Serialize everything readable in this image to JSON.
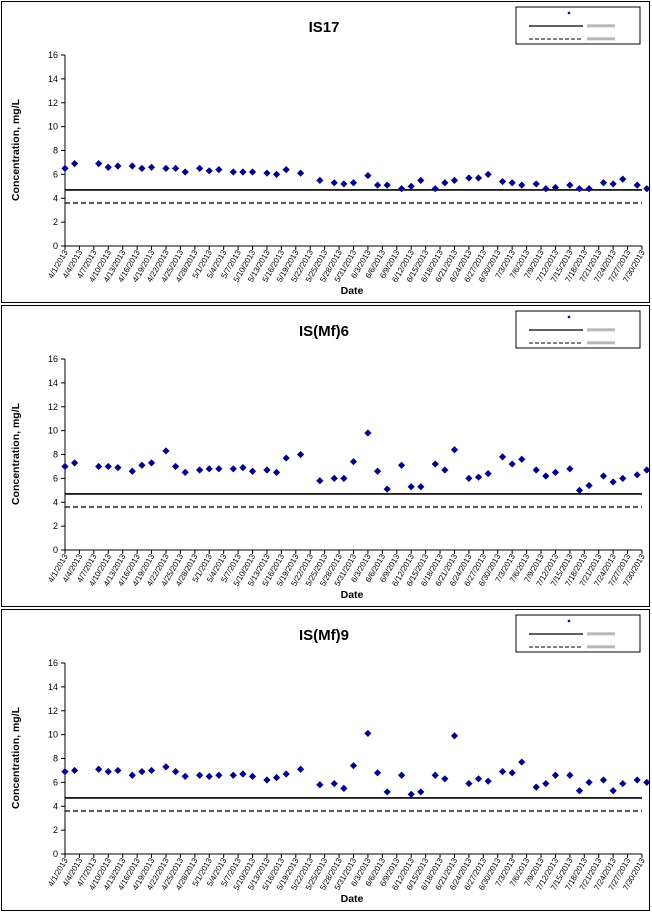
{
  "chart_data": [
    {
      "type": "scatter",
      "title": "IS17",
      "xlabel": "Date",
      "ylabel": "Concentration, mg/L",
      "ylim": [
        0,
        16
      ],
      "yticks": [
        "0",
        "2",
        "4",
        "6",
        "8",
        "10",
        "12",
        "14",
        "16"
      ],
      "xticks": [
        "4/1/2013",
        "4/4/2013",
        "4/7/2013",
        "4/10/2013",
        "4/13/2013",
        "4/16/2013",
        "4/19/2013",
        "4/22/2013",
        "4/25/2013",
        "4/28/2013",
        "5/1/2013",
        "5/4/2013",
        "5/7/2013",
        "5/10/2013",
        "5/13/2013",
        "5/16/2013",
        "5/19/2013",
        "5/22/2013",
        "5/25/2013",
        "5/28/2013",
        "5/31/2013",
        "6/3/2013",
        "6/6/2013",
        "6/9/2013",
        "6/12/2013",
        "6/15/2013",
        "6/18/2013",
        "6/21/2013",
        "6/24/2013",
        "6/27/2013",
        "6/30/2013",
        "7/3/2013",
        "7/6/2013",
        "7/9/2013",
        "7/12/2013",
        "7/15/2013",
        "7/18/2013",
        "7/21/2013",
        "7/24/2013",
        "7/27/2013",
        "7/30/2013"
      ],
      "grid": false,
      "legend_position": "top-right",
      "reference_lines": [
        {
          "value": 4.7,
          "style": "solid"
        },
        {
          "value": 3.6,
          "style": "dashed"
        }
      ],
      "series": [
        {
          "marker_color": "#00008B",
          "x": [
            "4/1/2013",
            "4/3/2013",
            "4/8/2013",
            "4/10/2013",
            "4/12/2013",
            "4/15/2013",
            "4/17/2013",
            "4/19/2013",
            "4/22/2013",
            "4/24/2013",
            "4/26/2013",
            "4/29/2013",
            "5/1/2013",
            "5/3/2013",
            "5/6/2013",
            "5/8/2013",
            "5/10/2013",
            "5/13/2013",
            "5/15/2013",
            "5/17/2013",
            "5/20/2013",
            "5/24/2013",
            "5/27/2013",
            "5/29/2013",
            "5/31/2013",
            "6/3/2013",
            "6/5/2013",
            "6/7/2013",
            "6/10/2013",
            "6/12/2013",
            "6/14/2013",
            "6/17/2013",
            "6/19/2013",
            "6/21/2013",
            "6/24/2013",
            "6/26/2013",
            "6/28/2013",
            "7/1/2013",
            "7/3/2013",
            "7/5/2013",
            "7/8/2013",
            "7/10/2013",
            "7/12/2013",
            "7/15/2013",
            "7/17/2013",
            "7/19/2013",
            "7/22/2013",
            "7/24/2013",
            "7/26/2013",
            "7/29/2013",
            "7/31/2013"
          ],
          "y": [
            6.5,
            6.9,
            6.9,
            6.6,
            6.7,
            6.7,
            6.5,
            6.6,
            6.5,
            6.5,
            6.2,
            6.5,
            6.3,
            6.4,
            6.2,
            6.2,
            6.2,
            6.1,
            6.0,
            6.4,
            6.1,
            5.5,
            5.3,
            5.2,
            5.3,
            5.9,
            5.1,
            5.1,
            4.8,
            5.0,
            5.5,
            4.8,
            5.3,
            5.5,
            5.7,
            5.7,
            6.0,
            5.4,
            5.3,
            5.1,
            5.2,
            4.8,
            4.9,
            5.1,
            4.8,
            4.8,
            5.3,
            5.2,
            5.6,
            5.1,
            4.8
          ]
        }
      ]
    },
    {
      "type": "scatter",
      "title": "IS(Mf)6",
      "xlabel": "Date",
      "ylabel": "Concentration, mg/L",
      "ylim": [
        0,
        16
      ],
      "yticks": [
        "0",
        "2",
        "4",
        "6",
        "8",
        "10",
        "12",
        "14",
        "16"
      ],
      "xticks": [
        "4/1/2013",
        "4/4/2013",
        "4/7/2013",
        "4/10/2013",
        "4/13/2013",
        "4/16/2013",
        "4/19/2013",
        "4/22/2013",
        "4/25/2013",
        "4/28/2013",
        "5/1/2013",
        "5/4/2013",
        "5/7/2013",
        "5/10/2013",
        "5/13/2013",
        "5/16/2013",
        "5/19/2013",
        "5/22/2013",
        "5/25/2013",
        "5/28/2013",
        "5/31/2013",
        "6/3/2013",
        "6/6/2013",
        "6/9/2013",
        "6/12/2013",
        "6/15/2013",
        "6/18/2013",
        "6/21/2013",
        "6/24/2013",
        "6/27/2013",
        "6/30/2013",
        "7/3/2013",
        "7/6/2013",
        "7/9/2013",
        "7/12/2013",
        "7/15/2013",
        "7/18/2013",
        "7/21/2013",
        "7/24/2013",
        "7/27/2013",
        "7/30/2013"
      ],
      "grid": false,
      "legend_position": "top-right",
      "reference_lines": [
        {
          "value": 4.7,
          "style": "solid"
        },
        {
          "value": 3.6,
          "style": "dashed"
        }
      ],
      "series": [
        {
          "marker_color": "#00008B",
          "x": [
            "4/1/2013",
            "4/3/2013",
            "4/8/2013",
            "4/10/2013",
            "4/12/2013",
            "4/15/2013",
            "4/17/2013",
            "4/19/2013",
            "4/22/2013",
            "4/24/2013",
            "4/26/2013",
            "4/29/2013",
            "5/1/2013",
            "5/3/2013",
            "5/6/2013",
            "5/8/2013",
            "5/10/2013",
            "5/13/2013",
            "5/15/2013",
            "5/17/2013",
            "5/20/2013",
            "5/24/2013",
            "5/27/2013",
            "5/29/2013",
            "5/31/2013",
            "6/3/2013",
            "6/5/2013",
            "6/7/2013",
            "6/10/2013",
            "6/12/2013",
            "6/14/2013",
            "6/17/2013",
            "6/19/2013",
            "6/21/2013",
            "6/24/2013",
            "6/26/2013",
            "6/28/2013",
            "7/1/2013",
            "7/3/2013",
            "7/5/2013",
            "7/8/2013",
            "7/10/2013",
            "7/12/2013",
            "7/15/2013",
            "7/17/2013",
            "7/19/2013",
            "7/22/2013",
            "7/24/2013",
            "7/26/2013",
            "7/29/2013",
            "7/31/2013"
          ],
          "y": [
            7.0,
            7.3,
            7.0,
            7.0,
            6.9,
            6.6,
            7.1,
            7.3,
            8.3,
            7.0,
            6.5,
            6.7,
            6.8,
            6.8,
            6.8,
            6.9,
            6.6,
            6.7,
            6.5,
            7.7,
            8.0,
            5.8,
            6.0,
            6.0,
            7.4,
            9.8,
            6.6,
            5.1,
            7.1,
            5.3,
            5.3,
            7.2,
            6.7,
            8.4,
            6.0,
            6.1,
            6.4,
            7.8,
            7.2,
            7.6,
            6.7,
            6.2,
            6.5,
            6.8,
            5.0,
            5.4,
            6.2,
            5.7,
            6.0,
            6.3,
            6.7
          ]
        }
      ]
    },
    {
      "type": "scatter",
      "title": "IS(Mf)9",
      "xlabel": "Date",
      "ylabel": "Concentration, mg/L",
      "ylim": [
        0,
        16
      ],
      "yticks": [
        "0",
        "2",
        "4",
        "6",
        "8",
        "10",
        "12",
        "14",
        "16"
      ],
      "xticks": [
        "4/1/2013",
        "4/4/2013",
        "4/7/2013",
        "4/10/2013",
        "4/13/2013",
        "4/16/2013",
        "4/19/2013",
        "4/22/2013",
        "4/25/2013",
        "4/28/2013",
        "5/1/2013",
        "5/4/2013",
        "5/7/2013",
        "5/10/2013",
        "5/13/2013",
        "5/16/2013",
        "5/19/2013",
        "5/22/2013",
        "5/25/2013",
        "5/28/2013",
        "5/31/2013",
        "6/3/2013",
        "6/6/2013",
        "6/9/2013",
        "6/12/2013",
        "6/15/2013",
        "6/18/2013",
        "6/21/2013",
        "6/24/2013",
        "6/27/2013",
        "6/30/2013",
        "7/3/2013",
        "7/6/2013",
        "7/9/2013",
        "7/12/2013",
        "7/15/2013",
        "7/18/2013",
        "7/21/2013",
        "7/24/2013",
        "7/27/2013",
        "7/30/2013"
      ],
      "grid": false,
      "legend_position": "top-right",
      "reference_lines": [
        {
          "value": 4.7,
          "style": "solid"
        },
        {
          "value": 3.6,
          "style": "dashed"
        }
      ],
      "series": [
        {
          "marker_color": "#00008B",
          "x": [
            "4/1/2013",
            "4/3/2013",
            "4/8/2013",
            "4/10/2013",
            "4/12/2013",
            "4/15/2013",
            "4/17/2013",
            "4/19/2013",
            "4/22/2013",
            "4/24/2013",
            "4/26/2013",
            "4/29/2013",
            "5/1/2013",
            "5/3/2013",
            "5/6/2013",
            "5/8/2013",
            "5/10/2013",
            "5/13/2013",
            "5/15/2013",
            "5/17/2013",
            "5/20/2013",
            "5/24/2013",
            "5/27/2013",
            "5/29/2013",
            "5/31/2013",
            "6/3/2013",
            "6/5/2013",
            "6/7/2013",
            "6/10/2013",
            "6/12/2013",
            "6/14/2013",
            "6/17/2013",
            "6/19/2013",
            "6/21/2013",
            "6/24/2013",
            "6/26/2013",
            "6/28/2013",
            "7/1/2013",
            "7/3/2013",
            "7/5/2013",
            "7/8/2013",
            "7/10/2013",
            "7/12/2013",
            "7/15/2013",
            "7/17/2013",
            "7/19/2013",
            "7/22/2013",
            "7/24/2013",
            "7/26/2013",
            "7/29/2013",
            "7/31/2013"
          ],
          "y": [
            6.9,
            7.0,
            7.1,
            6.9,
            7.0,
            6.6,
            6.9,
            7.0,
            7.3,
            6.9,
            6.5,
            6.6,
            6.5,
            6.6,
            6.6,
            6.7,
            6.5,
            6.2,
            6.4,
            6.7,
            7.1,
            5.8,
            5.9,
            5.5,
            7.4,
            10.1,
            6.8,
            5.2,
            6.6,
            5.0,
            5.2,
            6.6,
            6.3,
            9.9,
            5.9,
            6.3,
            6.1,
            6.9,
            6.8,
            7.7,
            5.6,
            5.9,
            6.6,
            6.6,
            5.3,
            6.0,
            6.2,
            5.3,
            5.9,
            6.2,
            6.0
          ]
        }
      ]
    }
  ]
}
